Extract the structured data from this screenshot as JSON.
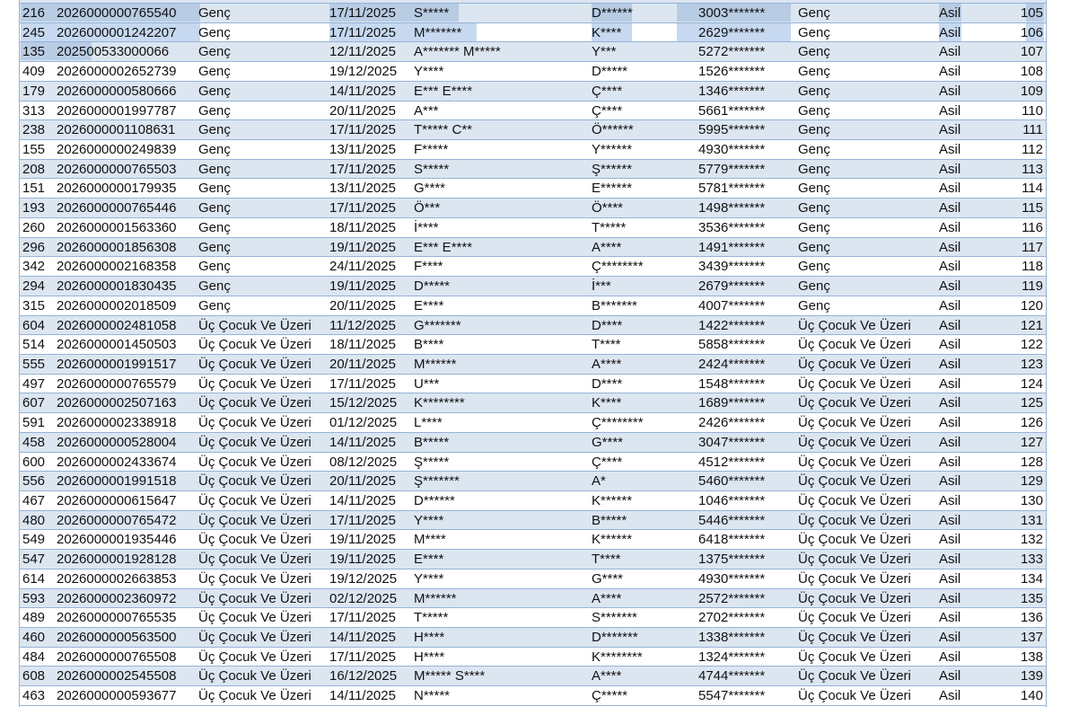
{
  "colors": {
    "band": "#dce6f1",
    "border": "#95b3d7",
    "selection": "#b8cce4"
  },
  "rows": [
    [
      "216",
      "2026000000765540",
      "Genç",
      "17/11/2025",
      "S*****",
      "D******",
      "3003*******",
      "Genç",
      "Asil",
      "105"
    ],
    [
      "245",
      "2026000001242207",
      "Genç",
      "17/11/2025",
      "M*******",
      "K****",
      "2629*******",
      "Genç",
      "Asil",
      "106"
    ],
    [
      "135",
      "202500533000066",
      "Genç",
      "12/11/2025",
      "A******* M*****",
      "Y***",
      "5272*******",
      "Genç",
      "Asil",
      "107"
    ],
    [
      "409",
      "2026000002652739",
      "Genç",
      "19/12/2025",
      "Y****",
      "D*****",
      "1526*******",
      "Genç",
      "Asil",
      "108"
    ],
    [
      "179",
      "2026000000580666",
      "Genç",
      "14/11/2025",
      "E*** E****",
      "Ç****",
      "1346*******",
      "Genç",
      "Asil",
      "109"
    ],
    [
      "313",
      "2026000001997787",
      "Genç",
      "20/11/2025",
      "A***",
      "Ç****",
      "5661*******",
      "Genç",
      "Asil",
      "110"
    ],
    [
      "238",
      "2026000001108631",
      "Genç",
      "17/11/2025",
      "T***** C**",
      "Ö******",
      "5995*******",
      "Genç",
      "Asil",
      "111"
    ],
    [
      "155",
      "2026000000249839",
      "Genç",
      "13/11/2025",
      "F*****",
      "Y******",
      "4930*******",
      "Genç",
      "Asil",
      "112"
    ],
    [
      "208",
      "2026000000765503",
      "Genç",
      "17/11/2025",
      "S*****",
      "Ş******",
      "5779*******",
      "Genç",
      "Asil",
      "113"
    ],
    [
      "151",
      "2026000000179935",
      "Genç",
      "13/11/2025",
      "G****",
      "E******",
      "5781*******",
      "Genç",
      "Asil",
      "114"
    ],
    [
      "193",
      "2026000000765446",
      "Genç",
      "17/11/2025",
      "Ö***",
      "Ö****",
      "1498*******",
      "Genç",
      "Asil",
      "115"
    ],
    [
      "260",
      "2026000001563360",
      "Genç",
      "18/11/2025",
      "İ****",
      "T*****",
      "3536*******",
      "Genç",
      "Asil",
      "116"
    ],
    [
      "296",
      "2026000001856308",
      "Genç",
      "19/11/2025",
      "E*** E****",
      "A****",
      "1491*******",
      "Genç",
      "Asil",
      "117"
    ],
    [
      "342",
      "2026000002168358",
      "Genç",
      "24/11/2025",
      "F****",
      "Ç********",
      "3439*******",
      "Genç",
      "Asil",
      "118"
    ],
    [
      "294",
      "2026000001830435",
      "Genç",
      "19/11/2025",
      "D*****",
      "İ***",
      "2679*******",
      "Genç",
      "Asil",
      "119"
    ],
    [
      "315",
      "2026000002018509",
      "Genç",
      "20/11/2025",
      "E****",
      "B*******",
      "4007*******",
      "Genç",
      "Asil",
      "120"
    ],
    [
      "604",
      "2026000002481058",
      "Üç Çocuk Ve Üzeri",
      "11/12/2025",
      "G*******",
      "D****",
      "1422*******",
      "Üç Çocuk Ve Üzeri",
      "Asil",
      "121"
    ],
    [
      "514",
      "2026000001450503",
      "Üç Çocuk Ve Üzeri",
      "18/11/2025",
      "B****",
      "T****",
      "5858*******",
      "Üç Çocuk Ve Üzeri",
      "Asil",
      "122"
    ],
    [
      "555",
      "2026000001991517",
      "Üç Çocuk Ve Üzeri",
      "20/11/2025",
      "M******",
      "A****",
      "2424*******",
      "Üç Çocuk Ve Üzeri",
      "Asil",
      "123"
    ],
    [
      "497",
      "2026000000765579",
      "Üç Çocuk Ve Üzeri",
      "17/11/2025",
      "U***",
      "D****",
      "1548*******",
      "Üç Çocuk Ve Üzeri",
      "Asil",
      "124"
    ],
    [
      "607",
      "2026000002507163",
      "Üç Çocuk Ve Üzeri",
      "15/12/2025",
      "K********",
      "K****",
      "1689*******",
      "Üç Çocuk Ve Üzeri",
      "Asil",
      "125"
    ],
    [
      "591",
      "2026000002338918",
      "Üç Çocuk Ve Üzeri",
      "01/12/2025",
      "L****",
      "Ç********",
      "2426*******",
      "Üç Çocuk Ve Üzeri",
      "Asil",
      "126"
    ],
    [
      "458",
      "2026000000528004",
      "Üç Çocuk Ve Üzeri",
      "14/11/2025",
      "B*****",
      "G****",
      "3047*******",
      "Üç Çocuk Ve Üzeri",
      "Asil",
      "127"
    ],
    [
      "600",
      "2026000002433674",
      "Üç Çocuk Ve Üzeri",
      "08/12/2025",
      "Ş*****",
      "Ç****",
      "4512*******",
      "Üç Çocuk Ve Üzeri",
      "Asil",
      "128"
    ],
    [
      "556",
      "2026000001991518",
      "Üç Çocuk Ve Üzeri",
      "20/11/2025",
      "Ş*******",
      "A*",
      "5460*******",
      "Üç Çocuk Ve Üzeri",
      "Asil",
      "129"
    ],
    [
      "467",
      "2026000000615647",
      "Üç Çocuk Ve Üzeri",
      "14/11/2025",
      "D******",
      "K******",
      "1046*******",
      "Üç Çocuk Ve Üzeri",
      "Asil",
      "130"
    ],
    [
      "480",
      "2026000000765472",
      "Üç Çocuk Ve Üzeri",
      "17/11/2025",
      "Y****",
      "B*****",
      "5446*******",
      "Üç Çocuk Ve Üzeri",
      "Asil",
      "131"
    ],
    [
      "549",
      "2026000001935446",
      "Üç Çocuk Ve Üzeri",
      "19/11/2025",
      "M****",
      "K******",
      "6418*******",
      "Üç Çocuk Ve Üzeri",
      "Asil",
      "132"
    ],
    [
      "547",
      "2026000001928128",
      "Üç Çocuk Ve Üzeri",
      "19/11/2025",
      "E****",
      "T****",
      "1375*******",
      "Üç Çocuk Ve Üzeri",
      "Asil",
      "133"
    ],
    [
      "614",
      "2026000002663853",
      "Üç Çocuk Ve Üzeri",
      "19/12/2025",
      "Y****",
      "G****",
      "4930*******",
      "Üç Çocuk Ve Üzeri",
      "Asil",
      "134"
    ],
    [
      "593",
      "2026000002360972",
      "Üç Çocuk Ve Üzeri",
      "02/12/2025",
      "M******",
      "A****",
      "2572*******",
      "Üç Çocuk Ve Üzeri",
      "Asil",
      "135"
    ],
    [
      "489",
      "2026000000765535",
      "Üç Çocuk Ve Üzeri",
      "17/11/2025",
      "T*****",
      "S*******",
      "2702*******",
      "Üç Çocuk Ve Üzeri",
      "Asil",
      "136"
    ],
    [
      "460",
      "2026000000563500",
      "Üç Çocuk Ve Üzeri",
      "14/11/2025",
      "H****",
      "D*******",
      "1338*******",
      "Üç Çocuk Ve Üzeri",
      "Asil",
      "137"
    ],
    [
      "484",
      "2026000000765508",
      "Üç Çocuk Ve Üzeri",
      "17/11/2025",
      "H****",
      "K********",
      "1324*******",
      "Üç Çocuk Ve Üzeri",
      "Asil",
      "138"
    ],
    [
      "608",
      "2026000002545508",
      "Üç Çocuk Ve Üzeri",
      "16/12/2025",
      "M***** S****",
      "A****",
      "4744*******",
      "Üç Çocuk Ve Üzeri",
      "Asil",
      "139"
    ],
    [
      "463",
      "2026000000593677",
      "Üç Çocuk Ve Üzeri",
      "14/11/2025",
      "N*****",
      "Ç*****",
      "5547*******",
      "Üç Çocuk Ve Üzeri",
      "Asil",
      "140"
    ]
  ]
}
